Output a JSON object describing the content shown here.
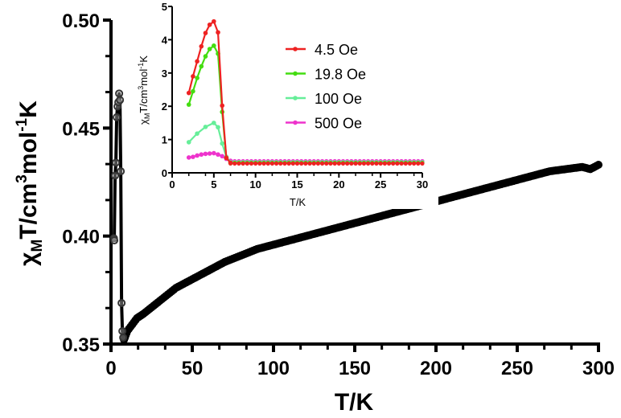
{
  "chart_data": [
    {
      "id": "main",
      "type": "line",
      "title": "",
      "xlabel": "T/K",
      "ylabel_parts": {
        "chi": "χ",
        "sub": "M",
        "text1": "T/cm",
        "sup1": "3",
        "text2": "mol",
        "sup2": "-1",
        "text3": "K"
      },
      "xlim": [
        0,
        300
      ],
      "ylim": [
        0.35,
        0.5
      ],
      "xticks": [
        0,
        50,
        100,
        150,
        200,
        250,
        300
      ],
      "xtick_labels": [
        "0",
        "50",
        "100",
        "150",
        "200",
        "250",
        "300"
      ],
      "yticks": [
        0.35,
        0.4,
        0.45,
        0.5
      ],
      "ytick_labels": [
        "0.35",
        "0.40",
        "0.45",
        "0.50"
      ],
      "grid": false,
      "series": [
        {
          "name": "χMT",
          "color": "#000000",
          "x": [
            1.8,
            2.0,
            2.5,
            3.0,
            3.5,
            4.0,
            4.5,
            5.0,
            5.5,
            6.0,
            6.5,
            7.0,
            7.5,
            8,
            9,
            10,
            12,
            14,
            16,
            18,
            20,
            25,
            30,
            35,
            40,
            45,
            50,
            60,
            70,
            80,
            90,
            100,
            110,
            120,
            130,
            140,
            150,
            160,
            170,
            180,
            190,
            200,
            210,
            220,
            230,
            240,
            250,
            260,
            270,
            280,
            290,
            295,
            300
          ],
          "y": [
            0.399,
            0.398,
            0.428,
            0.434,
            0.455,
            0.46,
            0.462,
            0.466,
            0.463,
            0.43,
            0.369,
            0.356,
            0.353,
            0.352,
            0.354,
            0.356,
            0.358,
            0.36,
            0.362,
            0.363,
            0.364,
            0.367,
            0.37,
            0.373,
            0.376,
            0.378,
            0.38,
            0.384,
            0.388,
            0.391,
            0.394,
            0.396,
            0.398,
            0.4,
            0.402,
            0.404,
            0.406,
            0.408,
            0.41,
            0.412,
            0.414,
            0.416,
            0.418,
            0.42,
            0.422,
            0.424,
            0.426,
            0.428,
            0.43,
            0.431,
            0.432,
            0.431,
            0.433
          ]
        }
      ]
    },
    {
      "id": "inset",
      "type": "line",
      "title": "",
      "xlabel": "T/K",
      "ylabel_parts": {
        "chi": "χ",
        "sub": "M",
        "text1": "T/cm",
        "sup1": "3",
        "text2": "mol",
        "sup2": "-1",
        "text3": "K"
      },
      "xlim": [
        0,
        30
      ],
      "ylim": [
        0,
        5
      ],
      "xticks": [
        0,
        5,
        10,
        15,
        20,
        25,
        30
      ],
      "xtick_labels": [
        "0",
        "5",
        "10",
        "15",
        "20",
        "25",
        "30"
      ],
      "yticks": [
        0,
        1,
        2,
        3,
        4,
        5
      ],
      "ytick_labels": [
        "0",
        "1",
        "2",
        "3",
        "4",
        "5"
      ],
      "grid": false,
      "legend_position": "top-right",
      "series": [
        {
          "name": "4.5 Oe",
          "color": "#ee2222",
          "x": [
            2,
            2.5,
            3,
            3.5,
            4,
            4.5,
            5,
            5.5,
            6,
            6.5,
            7
          ],
          "y": [
            2.4,
            2.9,
            3.35,
            3.8,
            4.2,
            4.45,
            4.55,
            4.22,
            2.02,
            0.45,
            0.3
          ],
          "tail_y": 0.28
        },
        {
          "name": "19.8 Oe",
          "color": "#44dd11",
          "x": [
            2,
            2.5,
            3,
            3.5,
            4,
            4.5,
            5,
            5.5,
            6,
            6.5,
            7
          ],
          "y": [
            2.05,
            2.45,
            2.85,
            3.2,
            3.5,
            3.72,
            3.82,
            3.58,
            1.83,
            0.45,
            0.3
          ],
          "tail_y": 0.3
        },
        {
          "name": "100 Oe",
          "color": "#66ee99",
          "x": [
            2,
            3,
            4,
            5,
            5.5,
            6,
            6.5,
            7
          ],
          "y": [
            0.92,
            1.18,
            1.38,
            1.5,
            1.37,
            0.88,
            0.48,
            0.32
          ],
          "tail_y": 0.32
        },
        {
          "name": "500 Oe",
          "color": "#ee33cc",
          "x": [
            2,
            2.5,
            3,
            3.5,
            4,
            4.5,
            5,
            5.5,
            6,
            6.5,
            7
          ],
          "y": [
            0.46,
            0.48,
            0.52,
            0.55,
            0.57,
            0.58,
            0.59,
            0.55,
            0.5,
            0.42,
            0.36
          ],
          "tail_y": 0.35
        }
      ]
    }
  ]
}
